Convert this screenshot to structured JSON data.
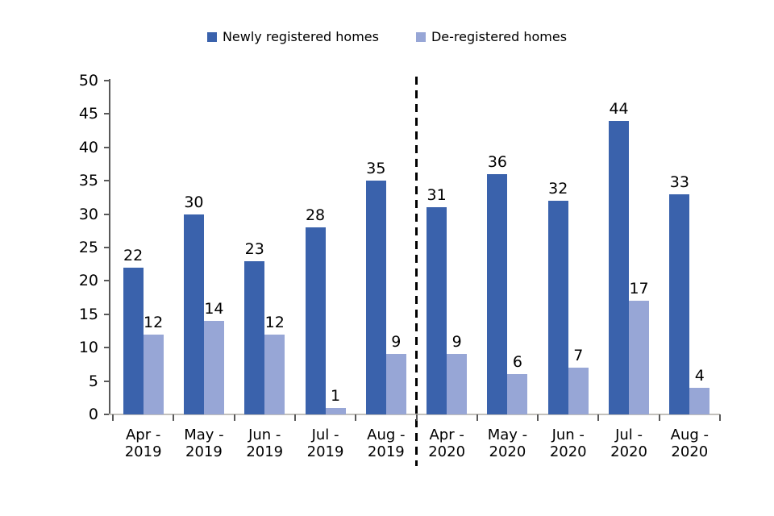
{
  "chart_data": {
    "type": "bar",
    "categories": [
      "Apr - 2019",
      "May - 2019",
      "Jun - 2019",
      "Jul - 2019",
      "Aug - 2019",
      "Apr - 2020",
      "May - 2020",
      "Jun - 2020",
      "Jul - 2020",
      "Aug - 2020"
    ],
    "series": [
      {
        "name": "Newly registered homes",
        "color": "#3a62ac",
        "values": [
          22,
          30,
          23,
          28,
          35,
          31,
          36,
          32,
          44,
          33
        ]
      },
      {
        "name": "De-registered homes",
        "color": "#97a6d6",
        "values": [
          12,
          14,
          12,
          1,
          9,
          9,
          6,
          7,
          17,
          4
        ]
      }
    ],
    "title": "",
    "xlabel": "",
    "ylabel": "",
    "ylim": [
      0,
      50
    ],
    "yticks": [
      0,
      5,
      10,
      15,
      20,
      25,
      30,
      35,
      40,
      45,
      50
    ],
    "grid": false,
    "data_labels": true,
    "legend_position": "top",
    "separator_boundary_index": 5,
    "separator_style": "dashed-black-vertical"
  },
  "colors": {
    "axis_line": "#595959",
    "x_axis_line": "#c2c0bb",
    "separator": "#000000",
    "background": "#ffffff",
    "text": "#000000"
  }
}
